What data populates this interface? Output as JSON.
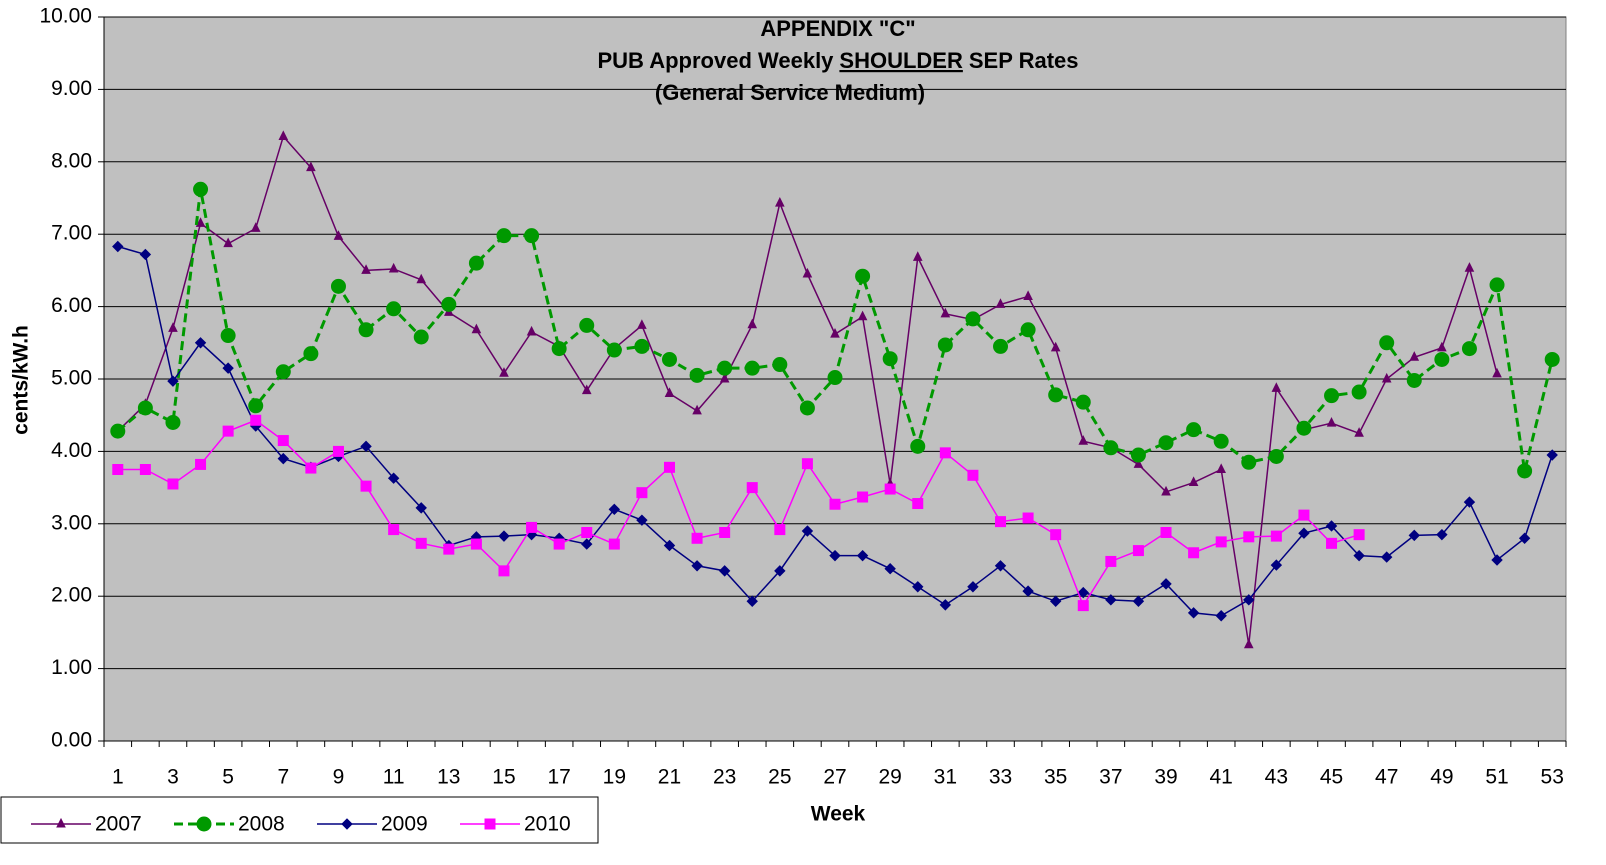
{
  "chart_data": {
    "type": "line",
    "title": [
      "APPENDIX \"C\"",
      [
        "PUB Approved Weekly",
        "SHOULDER",
        "SEP Rates"
      ],
      "(General Service Medium)"
    ],
    "x_label": "Week",
    "y_label": "cents/kW.h",
    "categories": [
      1,
      null,
      3,
      null,
      5,
      null,
      7,
      null,
      9,
      null,
      11,
      null,
      13,
      null,
      15,
      null,
      17,
      null,
      19,
      null,
      21,
      null,
      23,
      null,
      25,
      null,
      27,
      null,
      29,
      null,
      31,
      null,
      33,
      null,
      35,
      null,
      37,
      null,
      39,
      null,
      41,
      null,
      43,
      null,
      45,
      null,
      47,
      null,
      49,
      null,
      51,
      null,
      53
    ],
    "ylim": [
      0,
      10
    ],
    "yticks": [
      {
        "value": 0,
        "label": "0.00"
      },
      {
        "value": 1,
        "label": "1.00"
      },
      {
        "value": 2,
        "label": "2.00"
      },
      {
        "value": 3,
        "label": "3.00"
      },
      {
        "value": 4,
        "label": "4.00"
      },
      {
        "value": 5,
        "label": "5.00"
      },
      {
        "value": 6,
        "label": "6.00"
      },
      {
        "value": 7,
        "label": "7.00"
      },
      {
        "value": 8,
        "label": "8.00"
      },
      {
        "value": 9,
        "label": "9.00"
      },
      {
        "value": 10,
        "label": "10.00"
      }
    ],
    "grid": true,
    "legend": "bottom-left",
    "background": "#c0c0c0",
    "series": [
      {
        "name": "2007",
        "color": "#660066",
        "marker": "triangle",
        "line_style": "solid",
        "values": [
          4.28,
          4.65,
          5.7,
          7.15,
          6.87,
          7.08,
          8.35,
          7.92,
          6.97,
          6.5,
          6.52,
          6.37,
          5.92,
          5.68,
          5.08,
          5.65,
          5.45,
          4.84,
          5.42,
          5.74,
          4.8,
          4.56,
          5.0,
          5.75,
          7.43,
          6.45,
          5.62,
          5.86,
          3.55,
          6.68,
          5.9,
          5.82,
          6.03,
          6.14,
          5.43,
          4.14,
          4.05,
          3.82,
          3.44,
          3.57,
          3.75,
          1.33,
          4.87,
          4.3,
          4.39,
          4.25,
          5.0,
          5.3,
          5.43,
          6.53,
          5.07,
          null,
          null
        ]
      },
      {
        "name": "2008",
        "color": "#009900",
        "marker": "circle",
        "line_style": "dashed",
        "values": [
          4.28,
          4.6,
          4.4,
          7.62,
          5.6,
          4.63,
          5.1,
          5.35,
          6.28,
          5.68,
          5.97,
          5.58,
          6.03,
          6.6,
          6.98,
          6.98,
          5.42,
          5.74,
          5.4,
          5.45,
          5.27,
          5.05,
          5.15,
          5.15,
          5.2,
          4.6,
          5.02,
          6.42,
          5.28,
          4.07,
          5.47,
          5.83,
          5.45,
          5.68,
          4.78,
          4.68,
          4.05,
          3.95,
          4.12,
          4.3,
          4.14,
          3.85,
          3.93,
          4.32,
          4.77,
          4.82,
          5.5,
          4.98,
          5.27,
          5.42,
          6.3,
          3.73,
          5.27
        ]
      },
      {
        "name": "2009",
        "color": "#000080",
        "marker": "diamond",
        "line_style": "solid",
        "values": [
          6.83,
          6.72,
          4.97,
          5.5,
          5.15,
          4.35,
          3.9,
          3.78,
          3.93,
          4.07,
          3.63,
          3.22,
          2.7,
          2.82,
          2.83,
          2.85,
          2.8,
          2.72,
          3.2,
          3.05,
          2.7,
          2.42,
          2.35,
          1.93,
          2.35,
          2.9,
          2.56,
          2.56,
          2.38,
          2.13,
          1.88,
          2.13,
          2.42,
          2.07,
          1.93,
          2.05,
          1.95,
          1.93,
          2.17,
          1.77,
          1.73,
          1.95,
          2.43,
          2.87,
          2.97,
          2.56,
          2.54,
          2.84,
          2.85,
          3.3,
          2.5,
          2.8,
          3.95
        ]
      },
      {
        "name": "2010",
        "color": "#ff00ff",
        "marker": "square",
        "line_style": "solid",
        "values": [
          3.75,
          3.75,
          3.55,
          3.82,
          4.28,
          4.43,
          4.15,
          3.77,
          4.0,
          3.52,
          2.92,
          2.73,
          2.65,
          2.72,
          2.35,
          2.95,
          2.72,
          2.88,
          2.72,
          3.43,
          3.78,
          2.8,
          2.88,
          3.5,
          2.92,
          3.83,
          3.27,
          3.37,
          3.48,
          3.28,
          3.98,
          3.67,
          3.03,
          3.08,
          2.85,
          1.87,
          2.48,
          2.63,
          2.88,
          2.6,
          2.75,
          2.82,
          2.83,
          3.12,
          2.73,
          2.85,
          null,
          null,
          null,
          null,
          null,
          null,
          null
        ]
      }
    ]
  }
}
